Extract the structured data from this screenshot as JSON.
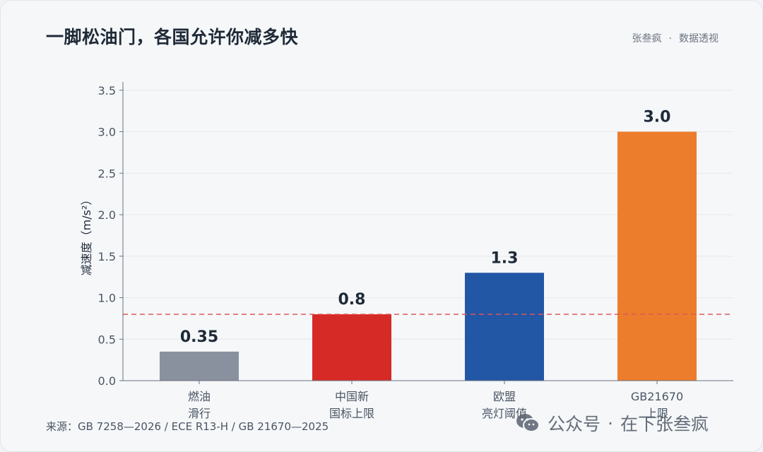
{
  "title": "一脚松油门，各国允许你减多快",
  "byline": {
    "author": "张叁疯",
    "separator": "·",
    "channel": "数据透视"
  },
  "source": "来源：GB 7258—2026 / ECE R13-H / GB 21670—2025",
  "watermark": {
    "icon": "wechat-icon",
    "platform": "公众号",
    "separator": "·",
    "account": "在下张叁疯"
  },
  "colors": {
    "grid": "#e5e7eb",
    "axis": "#6b7280",
    "reference_line": "#e05656",
    "label": "#1f2a37"
  },
  "chart_data": {
    "type": "bar",
    "title": "",
    "xlabel": "",
    "ylabel": "减速度（m/s²）",
    "ylim": [
      0,
      3.6
    ],
    "yticks": [
      "0.0",
      "0.5",
      "1.0",
      "1.5",
      "2.0",
      "2.5",
      "3.0",
      "3.5"
    ],
    "grid": true,
    "reference_line": {
      "y": 0.8,
      "style": "dashed",
      "color": "#e05656"
    },
    "categories": [
      [
        "燃油",
        "滑行"
      ],
      [
        "中国新",
        "国标上限"
      ],
      [
        "欧盟",
        "亮灯阈值"
      ],
      [
        "GB21670",
        "上限"
      ]
    ],
    "values": [
      0.35,
      0.8,
      1.3,
      3.0
    ],
    "value_labels": [
      "0.35",
      "0.8",
      "1.3",
      "3.0"
    ],
    "bar_colors": [
      "#8a919e",
      "#d62a27",
      "#2257a5",
      "#ec7d2d"
    ]
  }
}
